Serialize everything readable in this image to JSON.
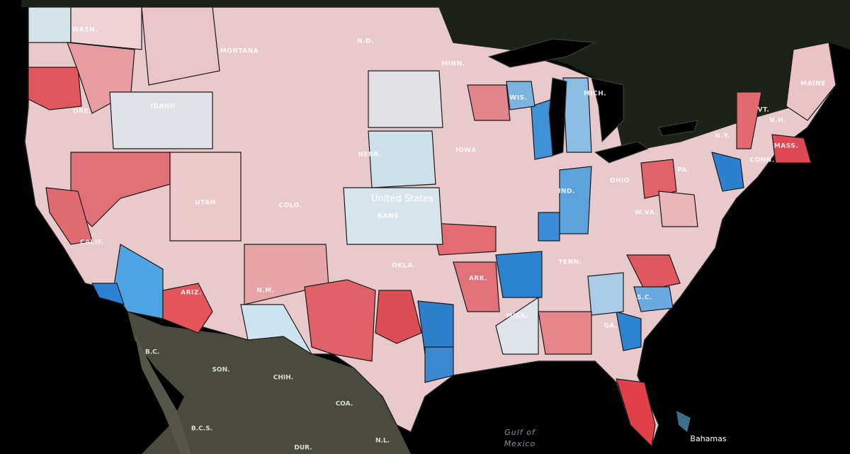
{
  "map": {
    "labels": [
      "WASH.",
      "MONTANA",
      "N.D.",
      "MINN.",
      "ORE.",
      "IDAHO",
      "WIS.",
      "MICH.",
      "MAINE",
      "N.Y.",
      "VT.",
      "N.H.",
      "MASS.",
      "CONN.",
      "IOWA",
      "NEBR.",
      "United States",
      "KANS.",
      "UTAH",
      "COLO.",
      "CALIF.",
      "IND.",
      "OHIO",
      "W.VA.",
      "ARIZ.",
      "N.M.",
      "OKLA.",
      "ARK.",
      "TENN.",
      "MISS.",
      "S.C.",
      "GA.",
      "PA.",
      "B.C.",
      "SON.",
      "CHIH.",
      "COA.",
      "B.C.S.",
      "DUR.",
      "N.L.",
      "Gulf of",
      "Mexico",
      "Bahamas"
    ]
  }
}
